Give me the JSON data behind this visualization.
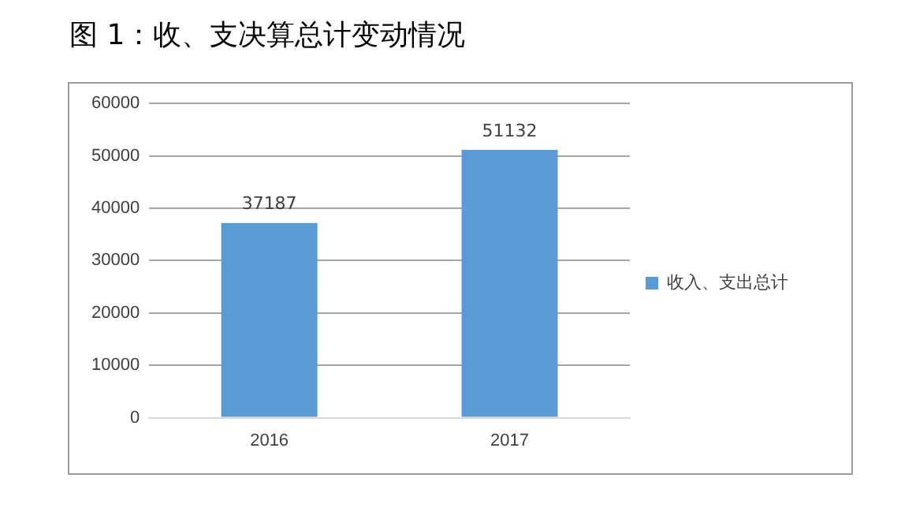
{
  "chart_data": {
    "type": "bar",
    "title": "图 1：收、支决算总计变动情况",
    "categories": [
      "2016",
      "2017"
    ],
    "series": [
      {
        "name": "收入、支出总计",
        "color": "#5b9bd5",
        "values": [
          37187,
          51132
        ]
      }
    ],
    "ylim": [
      0,
      60000
    ],
    "yticks": [
      0,
      10000,
      20000,
      30000,
      40000,
      50000,
      60000
    ],
    "grid": "y",
    "legend": "right",
    "data_labels": true
  }
}
